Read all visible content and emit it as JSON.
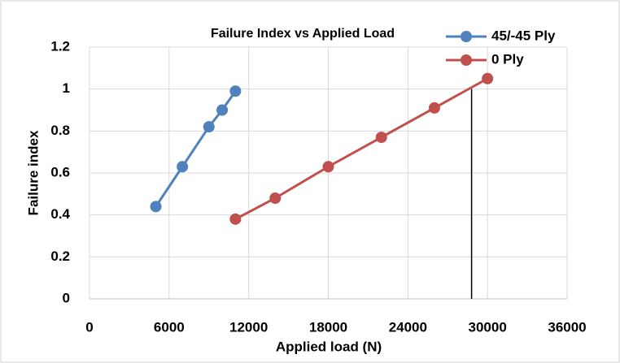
{
  "chart_data": {
    "type": "line",
    "title": "Failure Index vs Applied Load",
    "xlabel": "Applied load (N)",
    "ylabel": "Failure index",
    "xlim": [
      0,
      36000
    ],
    "xticks": [
      0,
      6000,
      12000,
      18000,
      24000,
      30000,
      36000
    ],
    "ylim": [
      0,
      1.2
    ],
    "yticks": [
      0,
      0.2,
      0.4,
      0.6,
      0.8,
      1,
      1.2
    ],
    "grid": true,
    "legend": "upper right",
    "series": [
      {
        "name": "45/-45 Ply",
        "color": "#4f81bd",
        "x": [
          5000,
          7000,
          9000,
          10000,
          11000
        ],
        "values": [
          0.44,
          0.63,
          0.82,
          0.9,
          0.99
        ]
      },
      {
        "name": "0 Ply",
        "color": "#c0504d",
        "x": [
          11000,
          14000,
          18000,
          22000,
          26000,
          30000
        ],
        "values": [
          0.38,
          0.48,
          0.63,
          0.77,
          0.91,
          1.05
        ]
      }
    ],
    "reference_line": {
      "x": 28800,
      "y": [
        0,
        1
      ],
      "color": "#000000"
    }
  }
}
